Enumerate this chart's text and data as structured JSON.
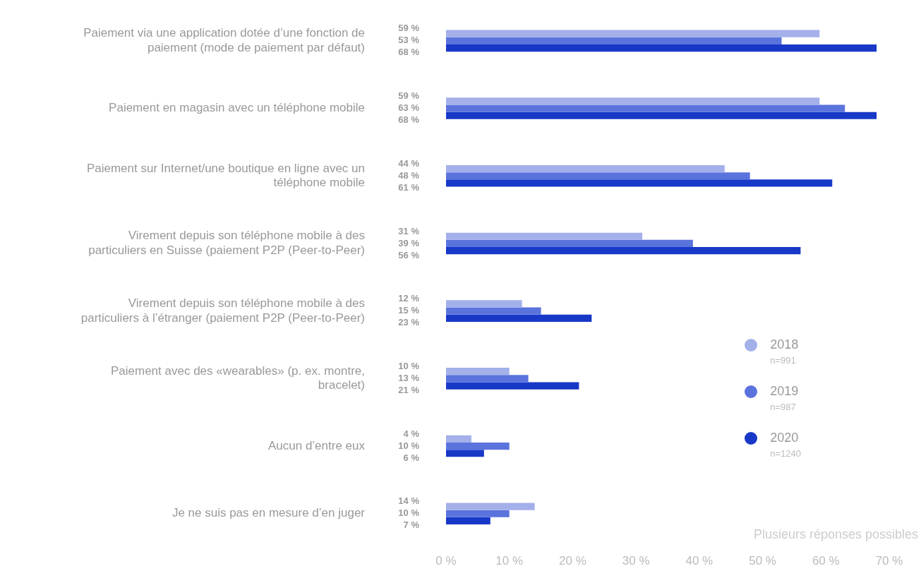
{
  "chart_data": {
    "type": "bar",
    "orientation": "horizontal",
    "categories": [
      "Paiement via une application dotée d’une fonction de paiement (mode de paiement par défaut)",
      "Paiement en magasin avec un téléphone mobile",
      "Paiement sur Internet/une boutique en ligne avec un téléphone mobile",
      "Virement depuis son téléphone mobile à des particuliers en Suisse (paiement P2P (Peer-to-Peer)",
      "Virement depuis son téléphone mobile à des particuliers à l’étranger (paiement P2P (Peer-to-Peer)",
      "Paiement avec des «wearables» (p. ex. montre, bracelet)",
      "Aucun d’entre eux",
      "Je ne suis pas en mesure d’en juger"
    ],
    "series": [
      {
        "name": "2018",
        "color": "#a3b0ea",
        "values": [
          59,
          59,
          44,
          31,
          12,
          10,
          4,
          14
        ],
        "value_labels": [
          "59 %",
          "59 %",
          "44 %",
          "31 %",
          "12 %",
          "10 %",
          "4 %",
          "14 %"
        ]
      },
      {
        "name": "2019",
        "color": "#5b73dd",
        "values": [
          53,
          63,
          48,
          39,
          15,
          13,
          10,
          10
        ],
        "value_labels": [
          "53 %",
          "63 %",
          "48 %",
          "39 %",
          "15 %",
          "13 %",
          "10 %",
          "10 %"
        ]
      },
      {
        "name": "2020",
        "color": "#1838c8",
        "values": [
          68,
          68,
          61,
          56,
          23,
          21,
          6,
          7
        ],
        "value_labels": [
          "68 %",
          "68 %",
          "61 %",
          "56 %",
          "23 %",
          "21 %",
          "6 %",
          "7 %"
        ]
      }
    ],
    "xlim": [
      0,
      70
    ],
    "xticks": [
      {
        "value": 0,
        "label": "0 %"
      },
      {
        "value": 10,
        "label": "10 %"
      },
      {
        "value": 20,
        "label": "20 %"
      },
      {
        "value": 30,
        "label": "30 %"
      },
      {
        "value": 40,
        "label": "40 %"
      },
      {
        "value": 50,
        "label": "50 %"
      },
      {
        "value": 60,
        "label": "60 %"
      },
      {
        "value": 70,
        "label": "70 %"
      }
    ],
    "legend": "bottom right",
    "annotations": [
      "n=991",
      "n=987",
      "n=1240",
      "Plusieurs réponses possibles"
    ]
  }
}
